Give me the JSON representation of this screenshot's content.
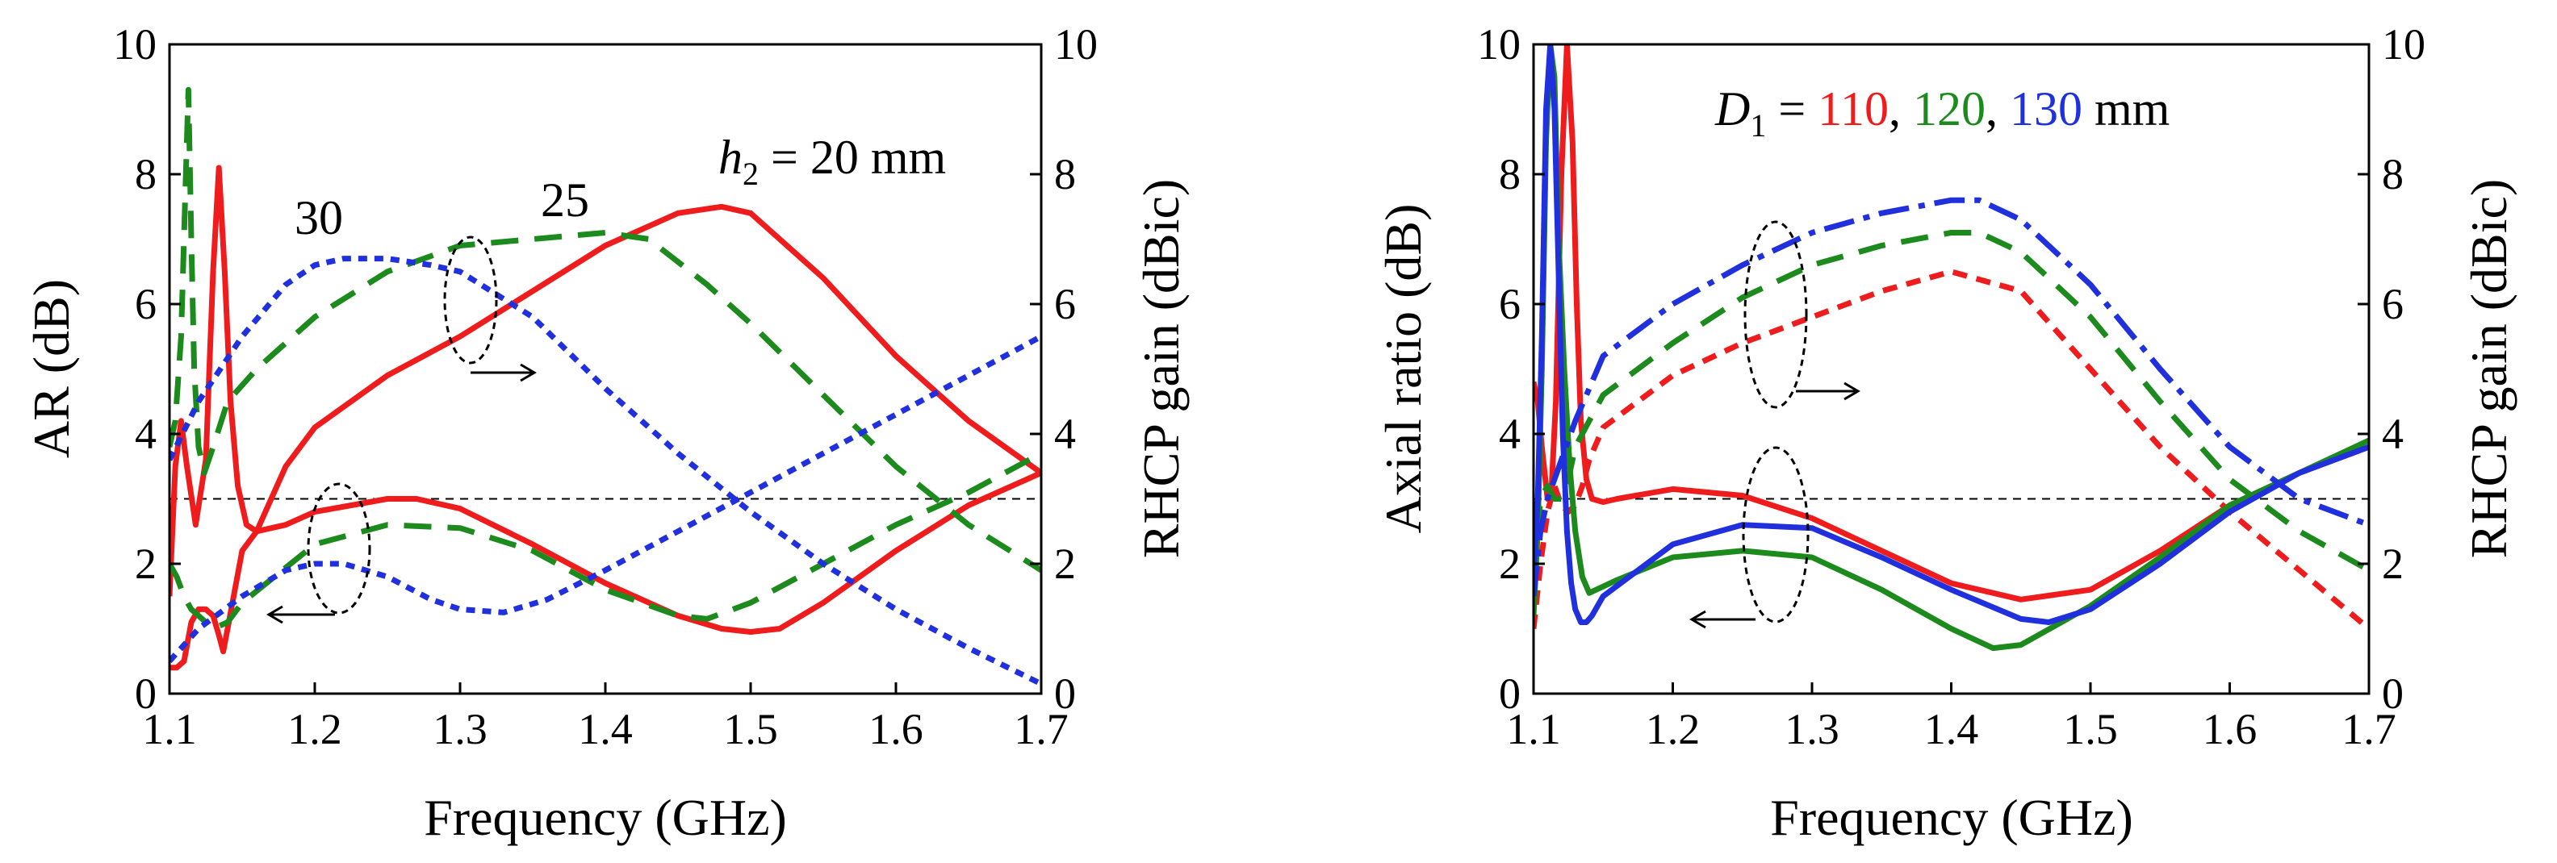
{
  "chart_data": [
    {
      "type": "line",
      "xlabel": "Frequency (GHz)",
      "ylabel_left": "AR (dB)",
      "ylabel_right": "RHCP gain (dBic)",
      "xlim": [
        1.1,
        1.7
      ],
      "ylim_left": [
        0,
        10
      ],
      "ylim_right": [
        0,
        10
      ],
      "xticks": [
        "1.1",
        "1.2",
        "1.3",
        "1.4",
        "1.5",
        "1.6",
        "1.7"
      ],
      "yticks_left": [
        "0",
        "2",
        "4",
        "6",
        "8",
        "10"
      ],
      "yticks_right": [
        "0",
        "2",
        "4",
        "6",
        "8",
        "10"
      ],
      "reference_line": 3,
      "annotations": {
        "label_30": "30",
        "label_25": "25",
        "label_h2_var": "h",
        "label_h2_sub": "2",
        "label_h2_rest": " = 20 mm"
      },
      "series": [
        {
          "name": "AR h2=20 mm",
          "axis": "left",
          "color": "#ee1c1c",
          "style": "solid",
          "x": [
            1.1,
            1.105,
            1.11,
            1.115,
            1.12,
            1.125,
            1.13,
            1.134,
            1.137,
            1.14,
            1.145,
            1.15,
            1.16,
            1.18,
            1.2,
            1.25,
            1.27,
            1.3,
            1.35,
            1.4,
            1.45,
            1.48,
            1.5,
            1.52,
            1.55,
            1.6,
            1.65,
            1.7
          ],
          "y": [
            0.4,
            0.4,
            0.5,
            1.1,
            1.3,
            1.3,
            1.2,
            0.9,
            0.65,
            1.0,
            1.6,
            2.2,
            2.5,
            2.6,
            2.8,
            3.0,
            3.0,
            2.85,
            2.3,
            1.7,
            1.2,
            1.0,
            0.95,
            1.0,
            1.4,
            2.2,
            2.9,
            3.4
          ]
        },
        {
          "name": "Gain h2=20 mm",
          "axis": "right",
          "color": "#ee1c1c",
          "style": "solid",
          "x": [
            1.1,
            1.104,
            1.108,
            1.112,
            1.118,
            1.125,
            1.13,
            1.134,
            1.138,
            1.142,
            1.147,
            1.153,
            1.16,
            1.18,
            1.2,
            1.25,
            1.3,
            1.35,
            1.4,
            1.45,
            1.48,
            1.5,
            1.55,
            1.6,
            1.65,
            1.7
          ],
          "y": [
            1.5,
            3.5,
            4.2,
            3.5,
            2.6,
            3.6,
            6.5,
            8.1,
            6.5,
            4.5,
            3.2,
            2.6,
            2.5,
            3.5,
            4.1,
            4.9,
            5.5,
            6.2,
            6.9,
            7.4,
            7.5,
            7.4,
            6.4,
            5.2,
            4.2,
            3.4
          ]
        },
        {
          "name": "AR h2=25 mm",
          "axis": "left",
          "color": "#1c8a1c",
          "style": "dashed",
          "x": [
            1.1,
            1.105,
            1.11,
            1.115,
            1.12,
            1.125,
            1.13,
            1.14,
            1.15,
            1.2,
            1.25,
            1.3,
            1.35,
            1.4,
            1.45,
            1.47,
            1.5,
            1.55,
            1.6,
            1.65,
            1.7
          ],
          "y": [
            2.0,
            1.8,
            1.5,
            1.3,
            1.2,
            1.1,
            1.0,
            1.1,
            1.4,
            2.3,
            2.6,
            2.55,
            2.2,
            1.6,
            1.2,
            1.15,
            1.4,
            2.0,
            2.6,
            3.1,
            3.7
          ]
        },
        {
          "name": "Gain h2=25 mm",
          "axis": "right",
          "color": "#1c8a1c",
          "style": "dashed",
          "x": [
            1.1,
            1.104,
            1.108,
            1.111,
            1.113,
            1.115,
            1.117,
            1.12,
            1.124,
            1.13,
            1.14,
            1.16,
            1.2,
            1.25,
            1.3,
            1.35,
            1.4,
            1.43,
            1.47,
            1.5,
            1.55,
            1.6,
            1.65,
            1.7
          ],
          "y": [
            3.8,
            4.2,
            5.5,
            7.8,
            9.3,
            7.0,
            5.0,
            3.8,
            3.4,
            3.8,
            4.5,
            5.0,
            5.8,
            6.5,
            6.9,
            7.0,
            7.1,
            7.0,
            6.3,
            5.7,
            4.6,
            3.5,
            2.6,
            1.9
          ]
        },
        {
          "name": "AR h2=30 mm",
          "axis": "left",
          "color": "#2030dd",
          "style": "dotted",
          "x": [
            1.1,
            1.12,
            1.15,
            1.18,
            1.2,
            1.22,
            1.25,
            1.28,
            1.3,
            1.33,
            1.36,
            1.4,
            1.45,
            1.5,
            1.55,
            1.6,
            1.65,
            1.7
          ],
          "y": [
            0.5,
            1.0,
            1.5,
            1.9,
            2.0,
            2.0,
            1.8,
            1.45,
            1.3,
            1.25,
            1.45,
            1.9,
            2.5,
            3.1,
            3.7,
            4.3,
            4.9,
            5.5
          ]
        },
        {
          "name": "Gain h2=30 mm",
          "axis": "right",
          "color": "#2030dd",
          "style": "dotted",
          "x": [
            1.1,
            1.12,
            1.15,
            1.18,
            1.2,
            1.22,
            1.25,
            1.28,
            1.3,
            1.35,
            1.4,
            1.45,
            1.5,
            1.55,
            1.6,
            1.65,
            1.7
          ],
          "y": [
            3.6,
            4.5,
            5.5,
            6.3,
            6.6,
            6.7,
            6.7,
            6.6,
            6.5,
            5.8,
            4.7,
            3.7,
            2.8,
            2.0,
            1.3,
            0.7,
            0.15
          ]
        }
      ]
    },
    {
      "type": "line",
      "xlabel": "Frequency (GHz)",
      "ylabel_left": "Axial ratio (dB)",
      "ylabel_right": "RHCP gain (dBic)",
      "xlim": [
        1.1,
        1.7
      ],
      "ylim_left": [
        0,
        10
      ],
      "ylim_right": [
        0,
        10
      ],
      "xticks": [
        "1.1",
        "1.2",
        "1.3",
        "1.4",
        "1.5",
        "1.6",
        "1.7"
      ],
      "yticks_left": [
        "0",
        "2",
        "4",
        "6",
        "8",
        "10"
      ],
      "yticks_right": [
        "0",
        "2",
        "4",
        "6",
        "8",
        "10"
      ],
      "reference_line": 3,
      "legend_text": {
        "d_var": "D",
        "d_sub": "1",
        "equals": " = ",
        "v110": "110",
        "comma1": ", ",
        "v120": "120",
        "comma2": ", ",
        "v130": "130",
        "unit": " mm"
      },
      "series": [
        {
          "name": "AR D1=110 mm",
          "axis": "left",
          "color": "#ee1c1c",
          "style": "solid",
          "x": [
            1.1,
            1.103,
            1.106,
            1.11,
            1.113,
            1.116,
            1.12,
            1.124,
            1.128,
            1.131,
            1.134,
            1.138,
            1.142,
            1.15,
            1.16,
            1.2,
            1.25,
            1.3,
            1.35,
            1.4,
            1.45,
            1.5,
            1.55,
            1.6,
            1.65,
            1.7
          ],
          "y": [
            4.8,
            4.5,
            3.8,
            3.0,
            3.2,
            4.5,
            8.0,
            10.0,
            8.5,
            6.0,
            4.2,
            3.3,
            3.0,
            2.95,
            3.0,
            3.15,
            3.05,
            2.7,
            2.2,
            1.7,
            1.45,
            1.6,
            2.2,
            2.9,
            3.4,
            3.8
          ]
        },
        {
          "name": "Gain D1=110 mm",
          "axis": "right",
          "color": "#ee1c1c",
          "style": "dashed-short",
          "x": [
            1.1,
            1.105,
            1.11,
            1.115,
            1.12,
            1.125,
            1.13,
            1.135,
            1.14,
            1.15,
            1.2,
            1.25,
            1.3,
            1.35,
            1.4,
            1.45,
            1.5,
            1.55,
            1.6,
            1.65,
            1.7
          ],
          "y": [
            1.0,
            2.0,
            2.8,
            3.2,
            2.9,
            2.8,
            2.9,
            3.2,
            3.6,
            4.1,
            4.9,
            5.4,
            5.8,
            6.2,
            6.5,
            6.2,
            5.0,
            3.8,
            2.8,
            1.9,
            1.0
          ]
        },
        {
          "name": "AR D1=120 mm",
          "axis": "left",
          "color": "#1c8a1c",
          "style": "solid",
          "x": [
            1.1,
            1.103,
            1.106,
            1.109,
            1.112,
            1.115,
            1.118,
            1.122,
            1.126,
            1.13,
            1.135,
            1.14,
            1.145,
            1.15,
            1.16,
            1.2,
            1.25,
            1.3,
            1.35,
            1.4,
            1.43,
            1.45,
            1.5,
            1.55,
            1.6,
            1.65,
            1.7
          ],
          "y": [
            1.2,
            2.5,
            5.0,
            8.5,
            10.0,
            9.5,
            7.0,
            5.0,
            3.5,
            2.5,
            1.8,
            1.55,
            1.6,
            1.65,
            1.75,
            2.1,
            2.2,
            2.1,
            1.6,
            1.0,
            0.7,
            0.75,
            1.35,
            2.1,
            2.9,
            3.4,
            3.9
          ]
        },
        {
          "name": "Gain D1=120 mm",
          "axis": "right",
          "color": "#1c8a1c",
          "style": "dashed",
          "x": [
            1.1,
            1.105,
            1.11,
            1.115,
            1.12,
            1.125,
            1.13,
            1.14,
            1.15,
            1.2,
            1.25,
            1.3,
            1.35,
            1.4,
            1.42,
            1.45,
            1.5,
            1.55,
            1.6,
            1.65,
            1.7
          ],
          "y": [
            1.8,
            3.0,
            3.2,
            3.0,
            3.0,
            3.3,
            3.8,
            4.2,
            4.6,
            5.4,
            6.1,
            6.6,
            6.9,
            7.1,
            7.1,
            6.8,
            5.8,
            4.5,
            3.3,
            2.5,
            1.9
          ]
        },
        {
          "name": "AR D1=130 mm",
          "axis": "left",
          "color": "#2030dd",
          "style": "solid",
          "x": [
            1.1,
            1.103,
            1.106,
            1.109,
            1.112,
            1.115,
            1.118,
            1.121,
            1.124,
            1.127,
            1.13,
            1.134,
            1.138,
            1.142,
            1.15,
            1.2,
            1.25,
            1.3,
            1.35,
            1.4,
            1.45,
            1.47,
            1.5,
            1.55,
            1.6,
            1.65,
            1.7
          ],
          "y": [
            1.8,
            3.0,
            5.5,
            9.0,
            10.0,
            9.0,
            6.5,
            4.0,
            2.5,
            1.7,
            1.3,
            1.1,
            1.1,
            1.2,
            1.5,
            2.3,
            2.6,
            2.55,
            2.1,
            1.6,
            1.15,
            1.1,
            1.3,
            2.0,
            2.8,
            3.4,
            3.8
          ]
        },
        {
          "name": "Gain D1=130 mm",
          "axis": "right",
          "color": "#2030dd",
          "style": "dashdot",
          "x": [
            1.1,
            1.105,
            1.11,
            1.115,
            1.12,
            1.125,
            1.13,
            1.14,
            1.15,
            1.2,
            1.25,
            1.3,
            1.35,
            1.4,
            1.42,
            1.45,
            1.5,
            1.55,
            1.6,
            1.65,
            1.7
          ],
          "y": [
            1.5,
            2.5,
            3.0,
            3.3,
            3.6,
            3.9,
            4.2,
            4.7,
            5.2,
            6.0,
            6.6,
            7.1,
            7.4,
            7.6,
            7.6,
            7.3,
            6.3,
            5.0,
            3.8,
            3.0,
            2.6
          ]
        }
      ]
    }
  ]
}
